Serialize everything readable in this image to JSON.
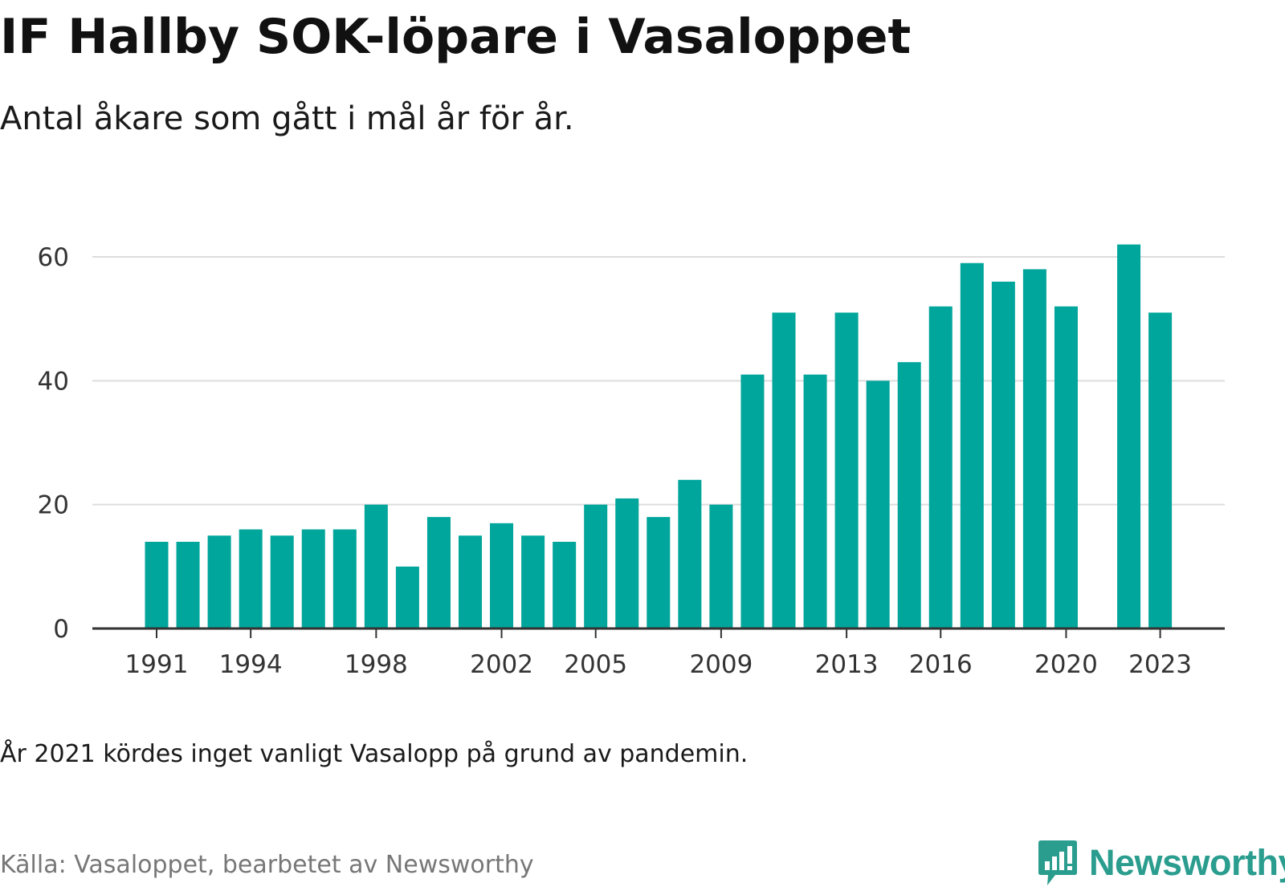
{
  "header": {
    "title": "IF Hallby SOK-löpare i Vasaloppet",
    "subtitle": "Antal åkare som gått i mål år för år."
  },
  "footer": {
    "note": "År 2021 kördes inget vanligt Vasalopp på grund av pandemin.",
    "source": "Källa: Vasaloppet, bearbetet av Newsworthy",
    "brand": "Newsworthy"
  },
  "colors": {
    "bar": "#00a59b",
    "grid": "#dddddd",
    "axis": "#333333",
    "brand": "#2a9d8f"
  },
  "icons": {
    "brand_logo": "bar-chart-speech-bubble-icon"
  },
  "chart_data": {
    "type": "bar",
    "title": "IF Hallby SOK-löpare i Vasaloppet",
    "subtitle": "Antal åkare som gått i mål år för år.",
    "xlabel": "",
    "ylabel": "",
    "ylim": [
      0,
      60
    ],
    "yticks": [
      0,
      20,
      40,
      60
    ],
    "xticks": [
      1991,
      1994,
      1998,
      2002,
      2005,
      2009,
      2013,
      2016,
      2020,
      2023
    ],
    "grid": true,
    "legend": "none",
    "x": [
      1991,
      1992,
      1993,
      1994,
      1995,
      1996,
      1997,
      1998,
      1999,
      2000,
      2001,
      2002,
      2003,
      2004,
      2005,
      2006,
      2007,
      2008,
      2009,
      2010,
      2011,
      2012,
      2013,
      2014,
      2015,
      2016,
      2017,
      2018,
      2019,
      2020,
      2022,
      2023
    ],
    "values": [
      14,
      14,
      15,
      16,
      15,
      16,
      16,
      20,
      10,
      18,
      15,
      17,
      15,
      14,
      20,
      21,
      18,
      24,
      20,
      41,
      51,
      41,
      51,
      40,
      43,
      52,
      59,
      56,
      58,
      52,
      62,
      51
    ]
  }
}
